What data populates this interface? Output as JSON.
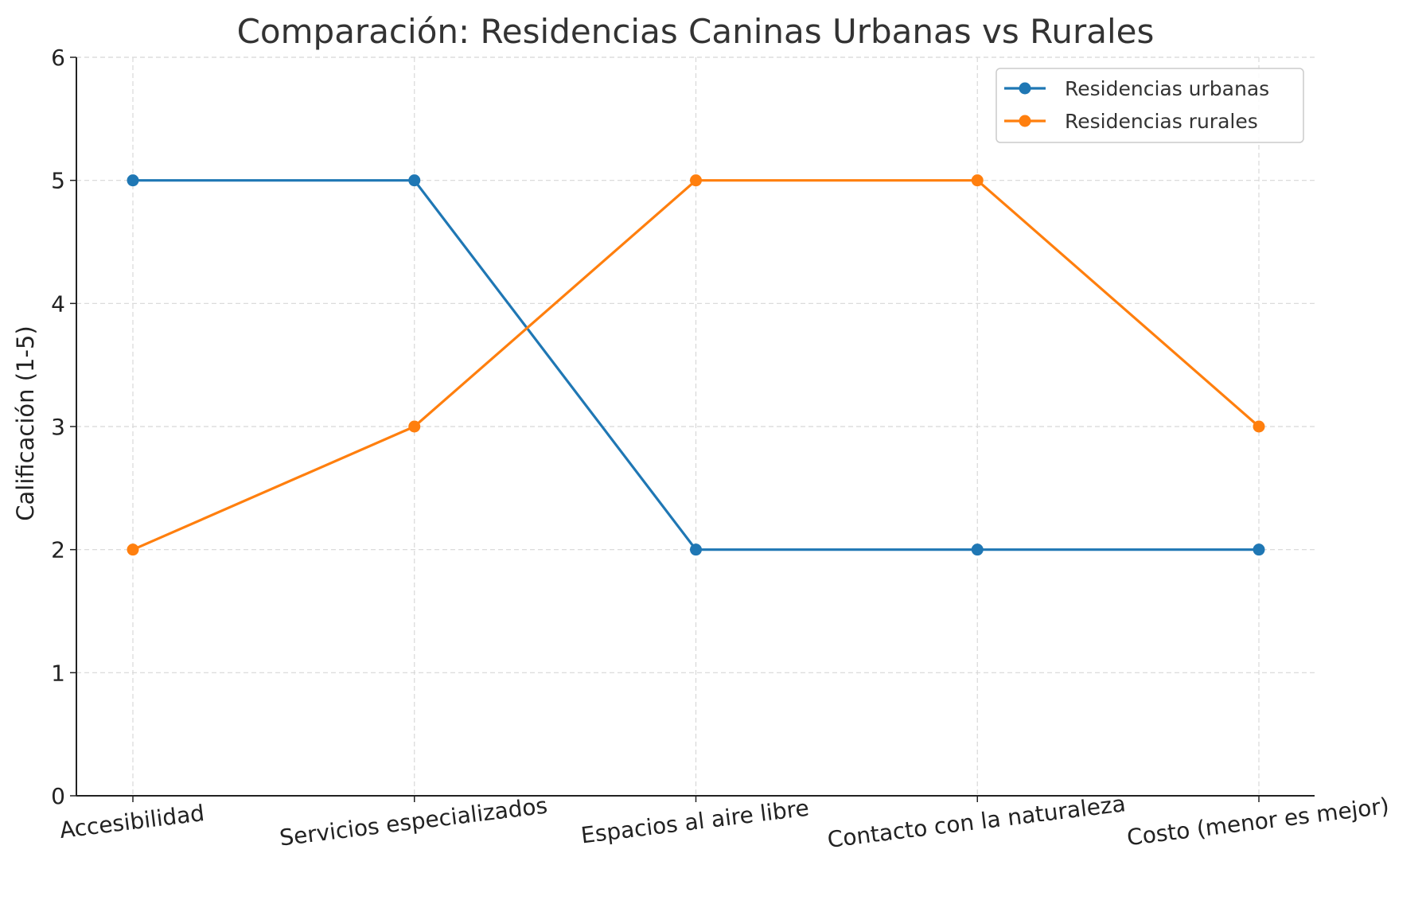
{
  "chart_data": {
    "type": "line",
    "title": "Comparación: Residencias Caninas Urbanas vs Rurales",
    "xlabel": "",
    "ylabel": "Calificación (1-5)",
    "categories": [
      "Accesibilidad",
      "Servicios especializados",
      "Espacios al aire libre",
      "Contacto con la naturaleza",
      "Costo (menor es mejor)"
    ],
    "ylim": [
      0,
      6
    ],
    "yticks": [
      "0",
      "1",
      "2",
      "3",
      "4",
      "5",
      "6"
    ],
    "grid": true,
    "legend_position": "top-right",
    "series": [
      {
        "name": "Residencias urbanas",
        "color": "#1f77b4",
        "marker": "circle",
        "values": [
          5,
          5,
          2,
          2,
          2
        ]
      },
      {
        "name": "Residencias rurales",
        "color": "#ff7f0e",
        "marker": "circle",
        "values": [
          2,
          3,
          5,
          5,
          3
        ]
      }
    ]
  }
}
